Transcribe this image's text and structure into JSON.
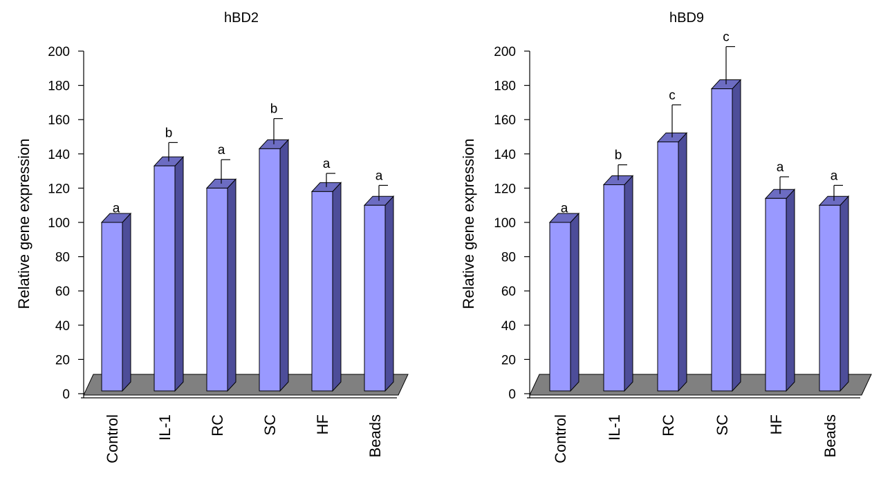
{
  "colors": {
    "bar_front": "#9999ff",
    "bar_side": "#4d4d99",
    "bar_top": "#6c6cc2",
    "floor": "#808080",
    "outline": "#000000"
  },
  "chart_data": [
    {
      "type": "bar",
      "title": "hBD2",
      "xlabel": "",
      "ylabel": "Relative gene expression",
      "ylim": [
        0,
        200
      ],
      "yticks": [
        "0",
        "20",
        "40",
        "60",
        "80",
        "100",
        "120",
        "140",
        "160",
        "180",
        "200"
      ],
      "categories": [
        "Control",
        "IL-1",
        "RC",
        "SC",
        "HF",
        "Beads"
      ],
      "values": [
        100,
        133,
        120,
        143,
        118,
        110
      ],
      "errors": [
        0,
        11,
        14,
        15,
        8,
        9
      ],
      "annotations": [
        "a",
        "b",
        "a",
        "b",
        "a",
        "a"
      ],
      "grid": false,
      "three_d": true
    },
    {
      "type": "bar",
      "title": "hBD9",
      "xlabel": "",
      "ylabel": "Relative gene expression",
      "ylim": [
        0,
        200
      ],
      "yticks": [
        "0",
        "20",
        "40",
        "60",
        "80",
        "100",
        "120",
        "140",
        "160",
        "180",
        "200"
      ],
      "categories": [
        "Control",
        "IL-1",
        "RC",
        "SC",
        "HF",
        "Beads"
      ],
      "values": [
        100,
        122,
        147,
        178,
        114,
        110
      ],
      "errors": [
        0,
        9,
        19,
        22,
        10,
        9
      ],
      "annotations": [
        "a",
        "b",
        "c",
        "c",
        "a",
        "a"
      ],
      "grid": false,
      "three_d": true
    }
  ]
}
